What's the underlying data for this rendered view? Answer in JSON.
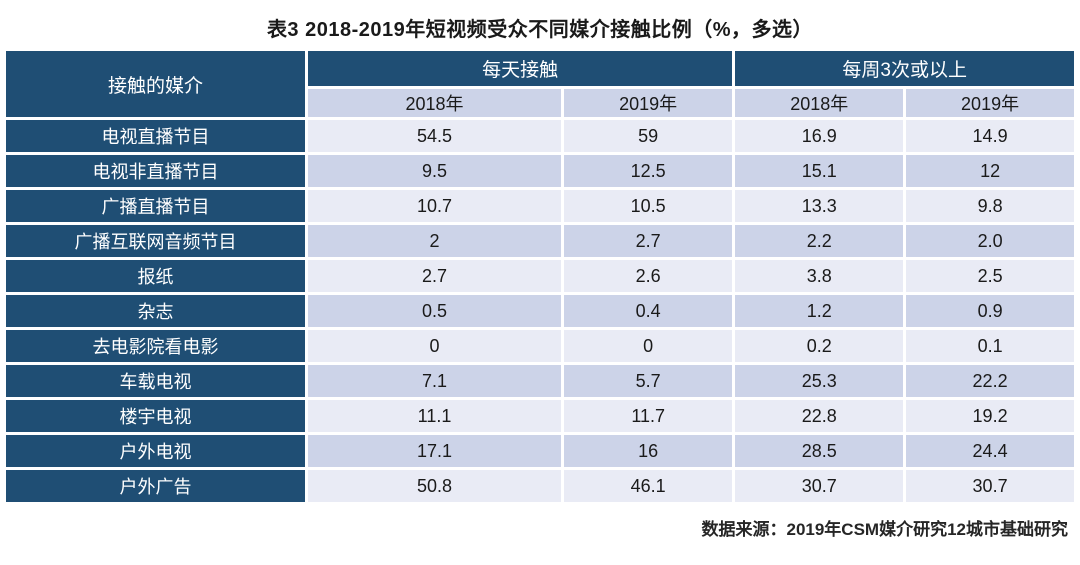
{
  "title": "表3 2018-2019年短视频受众不同媒介接触比例（%，多选）",
  "source_note": "数据来源：2019年CSM媒介研究12城市基础研究",
  "colors": {
    "header_bg": "#1F4E74",
    "row_light": "#E9EBF5",
    "row_dark": "#CCD3E8",
    "header_text": "#FFFFFF",
    "body_text": "#1A1A1A"
  },
  "chart_data": {
    "type": "table",
    "title": "表3 2018-2019年短视频受众不同媒介接触比例（%，多选）",
    "row_header_label": "接触的媒介",
    "column_groups": [
      {
        "label": "每天接触",
        "span": 2
      },
      {
        "label": "每周3次或以上",
        "span": 2
      }
    ],
    "sub_columns": [
      "2018年",
      "2019年",
      "2018年",
      "2019年"
    ],
    "rows": [
      {
        "label": "电视直播节目",
        "values": [
          "54.5",
          "59",
          "16.9",
          "14.9"
        ]
      },
      {
        "label": "电视非直播节目",
        "values": [
          "9.5",
          "12.5",
          "15.1",
          "12"
        ]
      },
      {
        "label": "广播直播节目",
        "values": [
          "10.7",
          "10.5",
          "13.3",
          "9.8"
        ]
      },
      {
        "label": "广播互联网音频节目",
        "values": [
          "2",
          "2.7",
          "2.2",
          "2.0"
        ]
      },
      {
        "label": "报纸",
        "values": [
          "2.7",
          "2.6",
          "3.8",
          "2.5"
        ]
      },
      {
        "label": "杂志",
        "values": [
          "0.5",
          "0.4",
          "1.2",
          "0.9"
        ]
      },
      {
        "label": "去电影院看电影",
        "values": [
          "0",
          "0",
          "0.2",
          "0.1"
        ]
      },
      {
        "label": "车载电视",
        "values": [
          "7.1",
          "5.7",
          "25.3",
          "22.2"
        ]
      },
      {
        "label": "楼宇电视",
        "values": [
          "11.1",
          "11.7",
          "22.8",
          "19.2"
        ]
      },
      {
        "label": "户外电视",
        "values": [
          "17.1",
          "16",
          "28.5",
          "24.4"
        ]
      },
      {
        "label": "户外广告",
        "values": [
          "50.8",
          "46.1",
          "30.7",
          "30.7"
        ]
      }
    ],
    "source_note": "数据来源：2019年CSM媒介研究12城市基础研究"
  }
}
